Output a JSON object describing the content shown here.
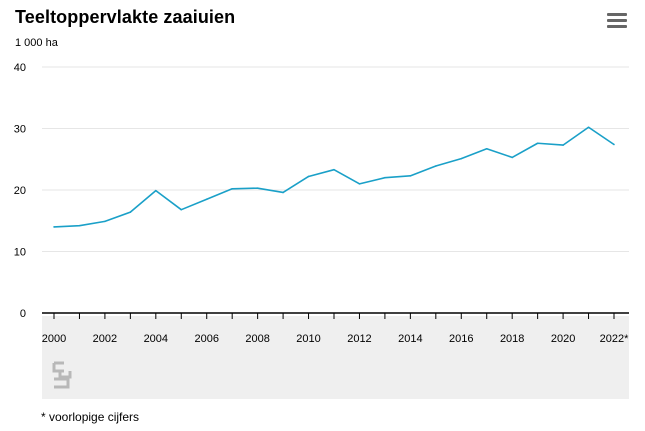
{
  "title": "Teeltoppervlakte zaaiuien",
  "unit": "1 000 ha",
  "menu_icon": "hamburger-menu-icon",
  "logo_icon": "cbs-logo-icon",
  "footnote": "* voorlopige cijfers",
  "colors": {
    "line": "#1aa0c8",
    "grid": "#e6e6e6",
    "axis_band": "#efefef"
  },
  "chart_data": {
    "type": "line",
    "title": "Teeltoppervlakte zaaiuien",
    "ylabel": "1 000 ha",
    "xlabel": "",
    "ylim": [
      0,
      40
    ],
    "yticks": [
      0,
      10,
      20,
      30,
      40
    ],
    "xtick_labels": [
      "2000",
      "2002",
      "2004",
      "2006",
      "2008",
      "2010",
      "2012",
      "2014",
      "2016",
      "2018",
      "2020",
      "2022*"
    ],
    "grid": true,
    "x": [
      2000,
      2001,
      2002,
      2003,
      2004,
      2005,
      2006,
      2007,
      2008,
      2009,
      2010,
      2011,
      2012,
      2013,
      2014,
      2015,
      2016,
      2017,
      2018,
      2019,
      2020,
      2021,
      2022
    ],
    "series": [
      {
        "values": [
          14.0,
          14.2,
          14.9,
          16.4,
          19.9,
          16.8,
          18.5,
          20.2,
          20.3,
          19.6,
          22.2,
          23.3,
          21.0,
          22.0,
          22.3,
          23.9,
          25.1,
          26.7,
          25.3,
          27.6,
          27.3,
          30.2,
          27.4
        ]
      }
    ]
  }
}
